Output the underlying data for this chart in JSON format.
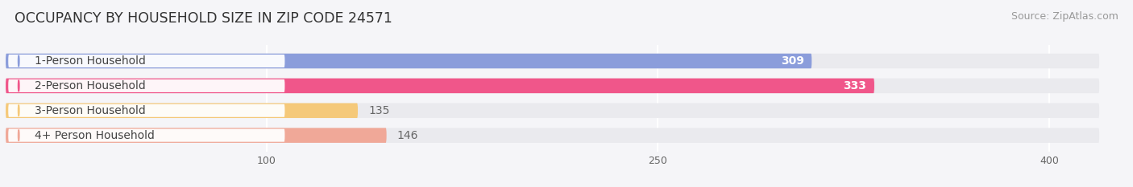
{
  "title": "OCCUPANCY BY HOUSEHOLD SIZE IN ZIP CODE 24571",
  "source": "Source: ZipAtlas.com",
  "categories": [
    "1-Person Household",
    "2-Person Household",
    "3-Person Household",
    "4+ Person Household"
  ],
  "values": [
    309,
    333,
    135,
    146
  ],
  "bar_colors": [
    "#8b9ddb",
    "#f0568a",
    "#f5c97a",
    "#f0a898"
  ],
  "bar_bg_color": "#eaeaee",
  "label_box_color": "#ffffff",
  "xlim": [
    0,
    430
  ],
  "xticks": [
    100,
    250,
    400
  ],
  "title_fontsize": 12.5,
  "label_fontsize": 10,
  "value_fontsize": 10,
  "source_fontsize": 9,
  "background_color": "#f5f5f8",
  "label_text_color": "#444444",
  "value_text_color_inside": "#ffffff",
  "value_text_color_outside": "#666666"
}
